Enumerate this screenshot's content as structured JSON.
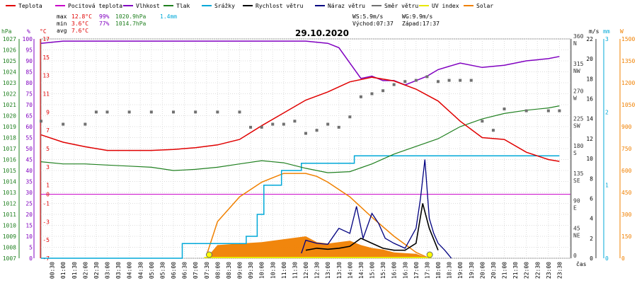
{
  "chart_data": {
    "type": "line",
    "title": "29.10.2020",
    "legend": [
      {
        "label": "Teplota",
        "color": "#e00000"
      },
      {
        "label": "Pocitová teplota",
        "color": "#c800c8"
      },
      {
        "label": "Vlhkost",
        "color": "#8000c0"
      },
      {
        "label": "Tlak",
        "color": "#208020"
      },
      {
        "label": "Srážky",
        "color": "#00a8d8"
      },
      {
        "label": "Rychlost větru",
        "color": "#000000"
      },
      {
        "label": "Náraz větru",
        "color": "#000080"
      },
      {
        "label": "Směr větru",
        "color": "#707070"
      },
      {
        "label": "UV index",
        "color": "#e8e800"
      },
      {
        "label": "Solar",
        "color": "#f08000"
      }
    ],
    "stats": {
      "max": {
        "label": "max",
        "temp": "12.8°C",
        "hum": "99%",
        "press": "1020.9hPa",
        "rain": "1.4mm"
      },
      "min": {
        "label": "min",
        "temp": "3.6°C",
        "hum": "77%",
        "press": "1014.7hPa"
      },
      "avg": {
        "label": "avg",
        "temp": "7.6°C"
      }
    },
    "wind_info": {
      "ws": "WS:5.9m/s",
      "wg": "WG:9.9m/s",
      "sunrise": "Východ:07:37",
      "sunset": "Západ:17:37"
    },
    "axes": {
      "hpa": {
        "unit": "hPa",
        "min": 1007,
        "max": 1027,
        "ticks": [
          "1027",
          "1026",
          "1025",
          "1024",
          "1023",
          "1022",
          "1021",
          "1020",
          "1019",
          "1018",
          "1017",
          "1016",
          "1015",
          "1014",
          "1013",
          "1012",
          "1011",
          "1010",
          "1009",
          "1008",
          "1007"
        ]
      },
      "percent": {
        "unit": "%",
        "ticks": [
          "100",
          "95",
          "90",
          "85",
          "80",
          "75",
          "70",
          "65",
          "60",
          "55",
          "50",
          "45",
          "40",
          "35",
          "30",
          "25",
          "20",
          "15",
          "10",
          "5",
          "0"
        ]
      },
      "celsius": {
        "unit": "°C",
        "min": -7,
        "max": 17,
        "ticks": [
          "17",
          "15",
          "13",
          "11",
          "9",
          "7",
          "5",
          "3",
          "1",
          "0",
          "-1",
          "-3",
          "-5",
          "-7"
        ]
      },
      "direction": {
        "ticks": [
          "360",
          "N",
          "315",
          "NW",
          "270",
          "W",
          "225",
          "SW",
          "180",
          "S",
          "135",
          "SE",
          "90",
          "E",
          "45",
          "NE",
          "0"
        ]
      },
      "wind": {
        "unit": "m/s",
        "min": 0,
        "max": 22,
        "ticks": [
          "22",
          "20",
          "18",
          "16",
          "14",
          "12",
          "10",
          "8",
          "6",
          "4",
          "2",
          "0"
        ]
      },
      "rain": {
        "unit": "mm",
        "min": 0,
        "max": 3,
        "ticks": [
          "3",
          "2",
          "1",
          "0"
        ]
      },
      "solar": {
        "unit": "W",
        "min": 0,
        "max": 1500,
        "ticks": [
          "1500",
          "1350",
          "1200",
          "1050",
          "900",
          "750",
          "600",
          "450",
          "300",
          "150",
          "0"
        ]
      },
      "time_label": "čas",
      "time_ticks": [
        "00:30",
        "01:00",
        "01:30",
        "02:00",
        "02:30",
        "03:00",
        "03:30",
        "04:00",
        "04:30",
        "05:00",
        "05:30",
        "06:00",
        "06:30",
        "07:00",
        "07:30",
        "08:00",
        "08:30",
        "09:00",
        "09:30",
        "10:00",
        "10:30",
        "11:00",
        "11:30",
        "12:00",
        "12:30",
        "13:00",
        "13:30",
        "14:00",
        "14:30",
        "15:00",
        "15:30",
        "16:00",
        "16:30",
        "17:00",
        "17:30",
        "18:00",
        "18:30",
        "19:00",
        "19:30",
        "20:00",
        "20:30",
        "21:00",
        "21:30",
        "22:00",
        "22:30",
        "23:00",
        "23:30"
      ]
    },
    "series": [
      {
        "name": "Teplota",
        "unit": "°C",
        "color": "#e00000",
        "x": [
          0,
          1,
          2,
          3,
          4,
          5,
          6,
          7,
          8,
          9,
          10,
          11,
          12,
          13,
          14,
          15,
          16,
          17,
          18,
          19,
          20,
          21,
          22,
          23,
          23.5
        ],
        "y": [
          6.5,
          5.7,
          5.2,
          4.8,
          4.8,
          4.8,
          4.9,
          5.1,
          5.4,
          6.0,
          7.5,
          8.9,
          10.3,
          11.2,
          12.3,
          12.8,
          12.4,
          11.5,
          10.2,
          8.0,
          6.2,
          6.0,
          4.6,
          3.8,
          3.6
        ]
      },
      {
        "name": "Vlhkost",
        "unit": "%",
        "color": "#8000c0",
        "x": [
          0,
          1,
          2,
          3,
          4,
          5,
          6,
          7,
          8,
          9,
          10,
          11,
          12,
          13,
          13.5,
          14,
          14.5,
          15,
          15.5,
          16,
          16.5,
          17,
          17.5,
          18,
          19,
          20,
          21,
          22,
          23,
          23.5
        ],
        "y": [
          98,
          99,
          99,
          99,
          99,
          99,
          99,
          99,
          99,
          99,
          99,
          99,
          99,
          98,
          96,
          89,
          82,
          83,
          81,
          81,
          79,
          81,
          83,
          86,
          89,
          87,
          88,
          90,
          91,
          92
        ]
      },
      {
        "name": "Tlak",
        "unit": "hPa",
        "color": "#208020",
        "x": [
          0,
          1,
          2,
          3,
          4,
          5,
          6,
          7,
          8,
          9,
          10,
          11,
          12,
          13,
          14,
          15,
          16,
          17,
          18,
          19,
          20,
          21,
          22,
          23,
          23.5
        ],
        "y": [
          1015.8,
          1015.6,
          1015.6,
          1015.5,
          1015.4,
          1015.3,
          1015.0,
          1015.1,
          1015.3,
          1015.6,
          1015.9,
          1015.7,
          1015.2,
          1014.8,
          1014.9,
          1015.6,
          1016.5,
          1017.2,
          1017.9,
          1019.0,
          1019.7,
          1020.2,
          1020.5,
          1020.7,
          1020.9
        ]
      },
      {
        "name": "Srážky",
        "unit": "mm",
        "color": "#00a8d8",
        "x": [
          0,
          6.4,
          6.4,
          9.3,
          9.3,
          9.8,
          9.8,
          10.1,
          10.1,
          10.9,
          10.9,
          11.8,
          11.8,
          14.2,
          14.2,
          23.5
        ],
        "y": [
          0,
          0,
          0.2,
          0.2,
          0.3,
          0.3,
          0.6,
          0.6,
          1.0,
          1.0,
          1.2,
          1.2,
          1.3,
          1.3,
          1.4,
          1.4
        ]
      },
      {
        "name": "Rychlost větru",
        "unit": "m/s",
        "color": "#000000",
        "x": [
          12.0,
          12.5,
          13.0,
          13.5,
          14.0,
          14.5,
          15.0,
          15.5,
          16.0,
          16.5,
          17.0,
          17.3,
          17.6,
          18.0
        ],
        "y": [
          0.8,
          1.0,
          0.9,
          1.0,
          1.2,
          2.0,
          1.5,
          1.0,
          0.8,
          0.8,
          1.5,
          5.5,
          3.0,
          0.8
        ]
      },
      {
        "name": "Náraz větru",
        "unit": "m/s",
        "color": "#000080",
        "x": [
          11.8,
          12.0,
          12.5,
          13.0,
          13.5,
          14.0,
          14.3,
          14.6,
          15.0,
          15.3,
          15.6,
          16.0,
          16.5,
          17.0,
          17.2,
          17.4,
          17.6,
          17.8,
          18.0,
          18.3,
          18.6
        ],
        "y": [
          0.5,
          1.8,
          1.5,
          1.4,
          3.0,
          2.5,
          5.2,
          2.0,
          4.5,
          3.5,
          2.0,
          1.5,
          1.0,
          3.0,
          6.0,
          9.9,
          4.0,
          2.5,
          1.5,
          0.8,
          0.0
        ]
      },
      {
        "name": "Směr větru",
        "unit": "°",
        "color": "#707070",
        "x": [
          0,
          1,
          2,
          2.5,
          3,
          4,
          5,
          6,
          7,
          8,
          9,
          9.5,
          10,
          10.5,
          11,
          11.5,
          12,
          12.5,
          13,
          13.5,
          14,
          14.5,
          15,
          15.5,
          16,
          16.5,
          17,
          17.5,
          18,
          18.5,
          19,
          19.5,
          20,
          20.5,
          21,
          22,
          23,
          23.5
        ],
        "y": [
          225,
          220,
          220,
          240,
          240,
          240,
          240,
          240,
          240,
          240,
          240,
          215,
          215,
          220,
          220,
          225,
          205,
          210,
          220,
          215,
          232,
          265,
          270,
          275,
          285,
          290,
          292,
          298,
          290,
          292,
          292,
          292,
          225,
          210,
          245,
          242,
          242,
          242
        ]
      },
      {
        "name": "Solar",
        "unit": "W",
        "color": "#f08000",
        "x": [
          7.5,
          8,
          9,
          10,
          11,
          12,
          12.5,
          13,
          14,
          15,
          16,
          17,
          17.6
        ],
        "y": [
          20,
          250,
          420,
          520,
          580,
          580,
          560,
          520,
          420,
          280,
          150,
          40,
          0
        ]
      },
      {
        "name": "Solar real",
        "unit": "W",
        "color": "#f08000",
        "x": [
          7.6,
          8,
          9,
          10,
          11,
          12,
          12.5,
          13,
          14,
          14.5,
          15,
          15.5,
          16,
          17,
          17.6
        ],
        "y": [
          20,
          90,
          100,
          110,
          130,
          150,
          110,
          100,
          120,
          90,
          70,
          60,
          40,
          30,
          0
        ]
      }
    ]
  }
}
